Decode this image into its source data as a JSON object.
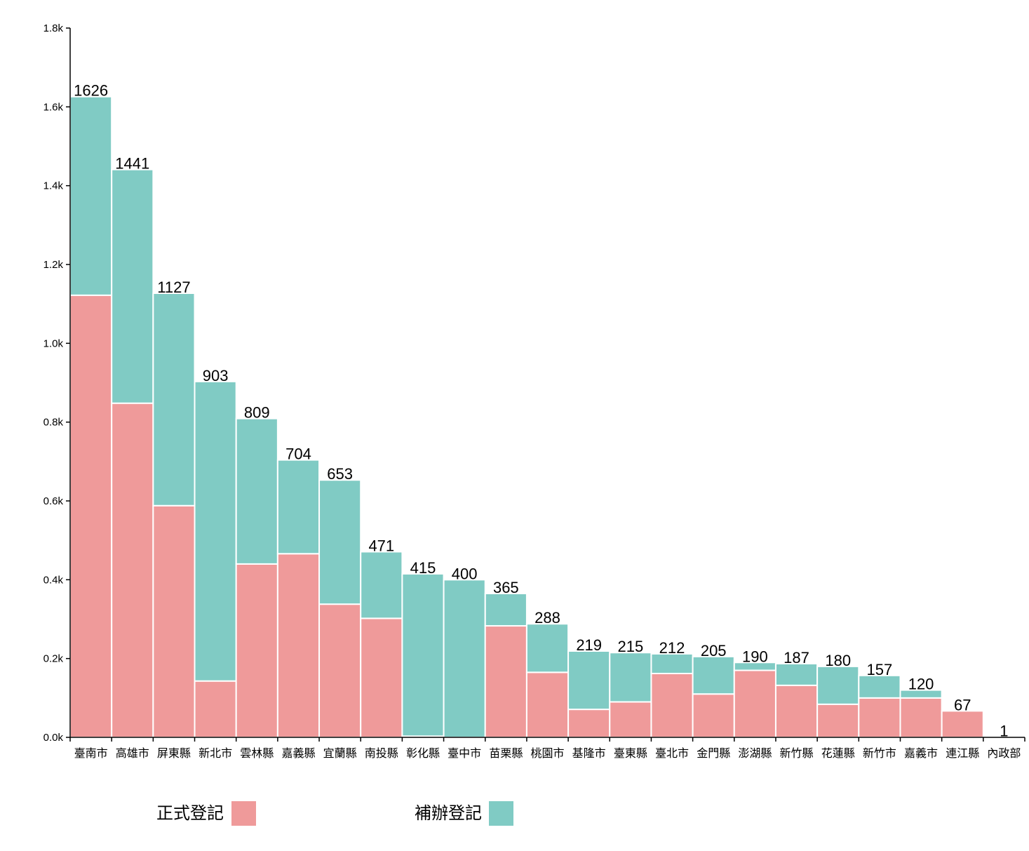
{
  "chart_data": {
    "type": "bar",
    "stacked": true,
    "categories": [
      "臺南市",
      "高雄市",
      "屏東縣",
      "新北市",
      "雲林縣",
      "嘉義縣",
      "宜蘭縣",
      "南投縣",
      "彰化縣",
      "臺中市",
      "苗栗縣",
      "桃園市",
      "基隆市",
      "臺東縣",
      "臺北市",
      "金門縣",
      "澎湖縣",
      "新竹縣",
      "花蓮縣",
      "新竹市",
      "嘉義市",
      "連江縣",
      "內政部"
    ],
    "series": [
      {
        "name": "正式登記",
        "color": "#ef9a9a",
        "values": [
          1122,
          848,
          588,
          143,
          440,
          466,
          338,
          302,
          3,
          0,
          283,
          165,
          71,
          90,
          162,
          110,
          170,
          132,
          84,
          100,
          100,
          67,
          0
        ]
      },
      {
        "name": "補辦登記",
        "color": "#80cbc4",
        "values": [
          504,
          593,
          539,
          760,
          369,
          238,
          315,
          169,
          412,
          400,
          82,
          123,
          148,
          125,
          50,
          95,
          20,
          55,
          96,
          57,
          20,
          0,
          1
        ]
      }
    ],
    "totals": [
      "1626",
      "1441",
      "1127",
      "903",
      "809",
      "704",
      "653",
      "471",
      "415",
      "400",
      "365",
      "288",
      "219",
      "215",
      "212",
      "205",
      "190",
      "187",
      "180",
      "157",
      "120",
      "67",
      "1"
    ],
    "ylim": [
      0,
      1800
    ],
    "yticks": [
      {
        "value": 0,
        "label": "0.0k"
      },
      {
        "value": 200,
        "label": "0.2k"
      },
      {
        "value": 400,
        "label": "0.4k"
      },
      {
        "value": 600,
        "label": "0.6k"
      },
      {
        "value": 800,
        "label": "0.8k"
      },
      {
        "value": 1000,
        "label": "1.0k"
      },
      {
        "value": 1200,
        "label": "1.2k"
      },
      {
        "value": 1400,
        "label": "1.4k"
      },
      {
        "value": 1600,
        "label": "1.6k"
      },
      {
        "value": 1800,
        "label": "1.8k"
      }
    ],
    "grid": false,
    "legend_position": "bottom-left"
  }
}
